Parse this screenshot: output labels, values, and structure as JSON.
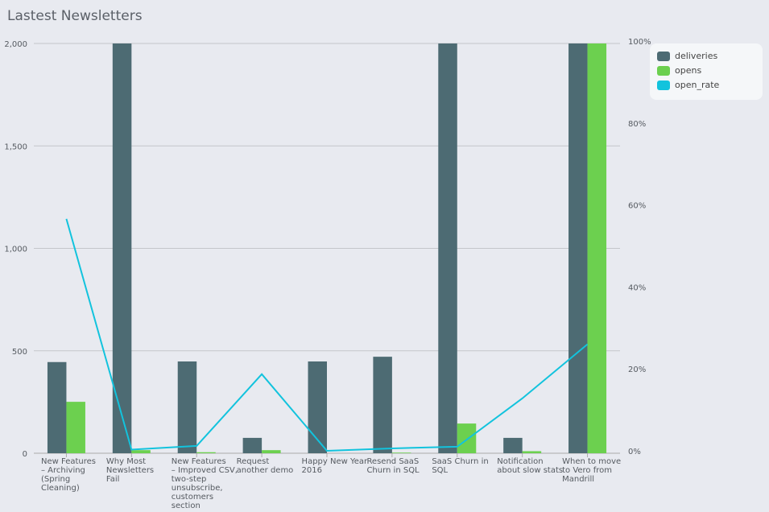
{
  "chart_data": {
    "type": "bar",
    "title": "Lastest Newsletters",
    "categories": [
      [
        "New Features",
        "– Archiving",
        "(Spring",
        "Cleaning)"
      ],
      [
        "Why Most",
        "Newsletters",
        "Fail"
      ],
      [
        "New Features",
        "– Improved CSV,",
        "two-step",
        "unsubscribe,",
        "customers",
        "section"
      ],
      [
        "Request",
        "another demo"
      ],
      [
        "Happy New Year",
        "2016"
      ],
      [
        "Resend SaaS",
        "Churn in SQL"
      ],
      [
        "SaaS Churn in",
        "SQL"
      ],
      [
        "Notification",
        "about slow stats"
      ],
      [
        "When to move",
        "to Vero from",
        "Mandrill"
      ]
    ],
    "series": [
      {
        "name": "deliveries",
        "type": "bar",
        "axis": "left",
        "color": "#4d6b73",
        "values": [
          445,
          2000,
          448,
          75,
          448,
          471,
          2000,
          75,
          2000
        ]
      },
      {
        "name": "opens",
        "type": "bar",
        "axis": "left",
        "color": "#6cd04f",
        "values": [
          251,
          15,
          5,
          15,
          0,
          3,
          145,
          10,
          2000
        ]
      },
      {
        "name": "open_rate",
        "type": "line",
        "axis": "right",
        "color": "#12c3dd",
        "values": [
          56.6,
          0.3,
          1.2,
          18.7,
          0,
          0.6,
          1.0,
          12.8,
          26
        ]
      }
    ],
    "ylim": [
      0,
      2000
    ],
    "yticks": [
      "0",
      "500",
      "1,000",
      "1,500",
      "2,000"
    ],
    "y2lim": [
      0,
      100
    ],
    "y2ticks": [
      "0%",
      "20%",
      "40%",
      "60%",
      "80%",
      "100%"
    ],
    "grid": true,
    "legend": "top-right"
  }
}
